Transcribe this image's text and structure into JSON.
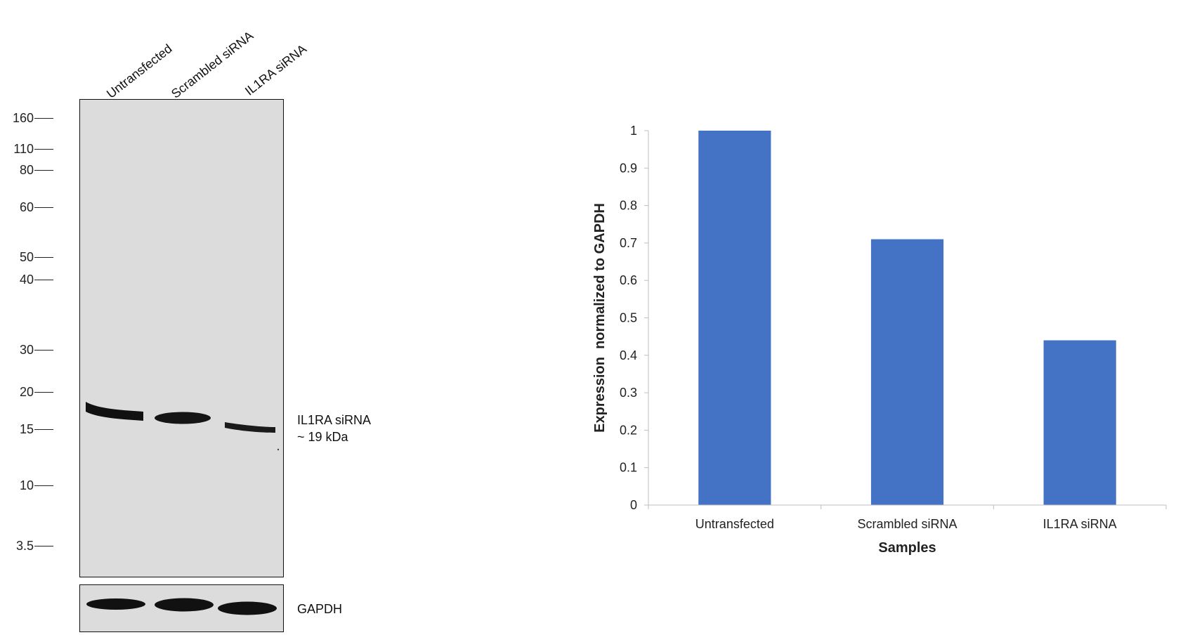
{
  "blot": {
    "lanes": [
      "Untransfected",
      "Scrambled siRNA",
      "IL1RA siRNA"
    ],
    "markers": [
      "160",
      "110",
      "80",
      "60",
      "50",
      "40",
      "30",
      "20",
      "15",
      "10",
      "3.5"
    ],
    "band_label_line1": "IL1RA siRNA",
    "band_label_line2": "~ 19 kDa",
    "loading_control": "GAPDH"
  },
  "colors": {
    "bar": "#4472c4",
    "membrane": "#dcdcdc",
    "band": "#111111"
  },
  "chart_data": {
    "type": "bar",
    "categories": [
      "Untransfected",
      "Scrambled siRNA",
      "IL1RA siRNA"
    ],
    "values": [
      1.0,
      0.71,
      0.44
    ],
    "title": "",
    "xlabel": "Samples",
    "ylabel": "Expression  normalized to GAPDH",
    "ylim": [
      0,
      1
    ],
    "yticks": [
      "0",
      "0.1",
      "0.2",
      "0.3",
      "0.4",
      "0.5",
      "0.6",
      "0.7",
      "0.8",
      "0.9",
      "1"
    ],
    "grid": false,
    "legend": "none"
  }
}
